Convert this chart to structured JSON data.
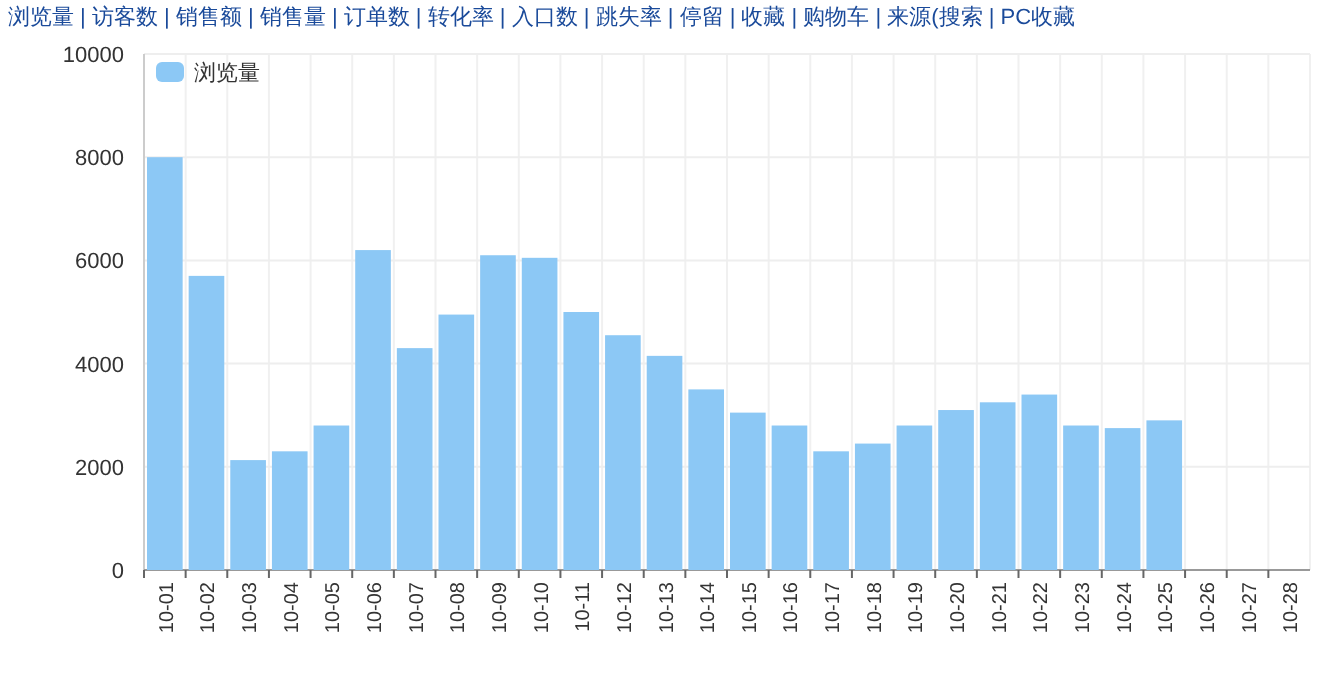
{
  "chart_data": {
    "type": "bar",
    "categories": [
      "10-01",
      "10-02",
      "10-03",
      "10-04",
      "10-05",
      "10-06",
      "10-07",
      "10-08",
      "10-09",
      "10-10",
      "10-11",
      "10-12",
      "10-13",
      "10-14",
      "10-15",
      "10-16",
      "10-17",
      "10-18",
      "10-19",
      "10-20",
      "10-21",
      "10-22",
      "10-23",
      "10-24",
      "10-25",
      "10-26",
      "10-27",
      "10-28"
    ],
    "series": [
      {
        "name": "浏览量",
        "color": "#8cc8f5",
        "values": [
          8000,
          5700,
          2130,
          2300,
          2800,
          6200,
          4300,
          4950,
          6100,
          6050,
          5000,
          4550,
          4150,
          3500,
          3050,
          2800,
          2300,
          2450,
          2800,
          3100,
          3250,
          3400,
          2800,
          2750,
          2900,
          null,
          null,
          null
        ]
      }
    ],
    "ylim": [
      0,
      10000
    ],
    "yticks": [
      0,
      2000,
      4000,
      6000,
      8000,
      10000
    ],
    "grid": true,
    "legend": "top left",
    "annotations": [
      "浏览量 | 访客数 | 销售额 | 销售量 | 订单数 | 转化率 | 入口数 | 跳失率 | 停留 | 收藏 | 购物车 | 来源(搜索 | PC收藏"
    ]
  }
}
